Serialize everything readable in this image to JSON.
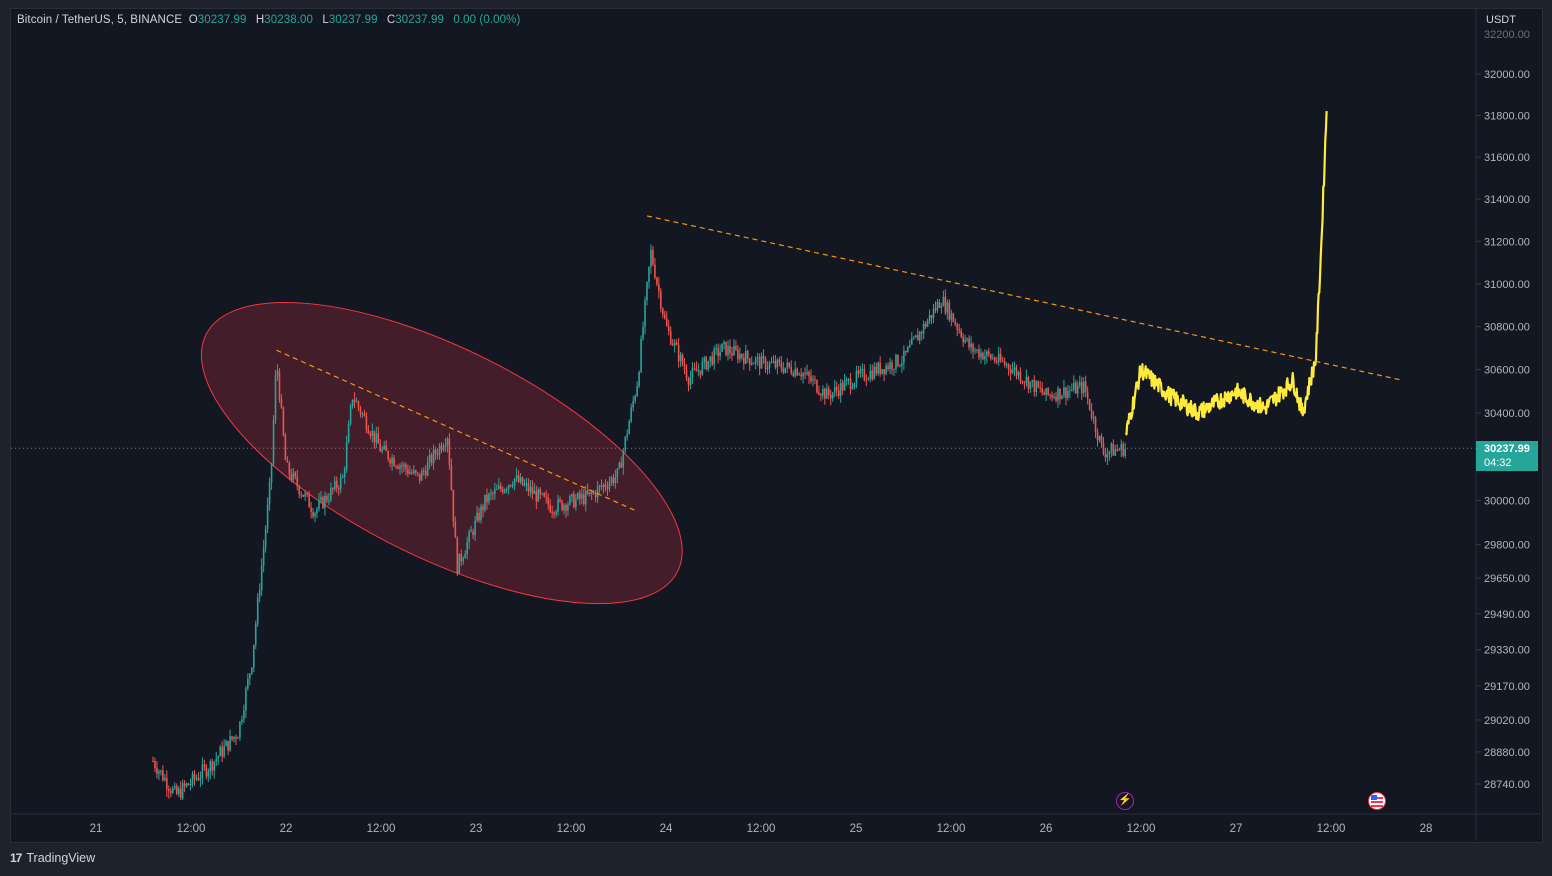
{
  "legend": {
    "symbol": "Bitcoin / TetherUS, 5, BINANCE",
    "o_label": "O",
    "o_value": "30237.99",
    "h_label": "H",
    "h_value": "30238.00",
    "l_label": "L",
    "l_value": "30237.99",
    "c_label": "C",
    "c_value": "30237.99",
    "change": "0.00 (0.00%)"
  },
  "axis_unit": "USDT",
  "price_tag": {
    "price": "30237.99",
    "countdown": "04:32"
  },
  "branding": "TradingView",
  "colors": {
    "background": "#131722",
    "up": "#26a69a",
    "down": "#ef5350",
    "projection": "#ffeb3b",
    "trendline": "#f7931a",
    "ellipse": "#f23645"
  },
  "icons": [
    "lightning-event-icon",
    "us-flag-event-icon",
    "tradingview-logo-icon"
  ],
  "chart_data": {
    "type": "candlestick",
    "title": "Bitcoin / TetherUS, 5, BINANCE",
    "y_axis": {
      "unit": "USDT",
      "ticks": [
        32000,
        31800,
        31600,
        31400,
        31200,
        31000,
        30800,
        30600,
        30400,
        30000,
        29800,
        29650,
        29490,
        29330,
        29170,
        29020,
        28880,
        28740
      ],
      "tick_labels": [
        "32000.00",
        "31800.00",
        "31600.00",
        "31400.00",
        "31200.00",
        "31000.00",
        "30800.00",
        "30600.00",
        "30400.00",
        "30000.00",
        "29800.00",
        "29650.00",
        "29490.00",
        "29330.00",
        "29170.00",
        "29020.00",
        "28880.00",
        "28740.00"
      ],
      "scale": "log"
    },
    "x_axis": {
      "tick_labels": [
        "21",
        "12:00",
        "22",
        "12:00",
        "23",
        "12:00",
        "24",
        "12:00",
        "25",
        "12:00",
        "26",
        "12:00",
        "27",
        "12:00",
        "28"
      ]
    },
    "current_price": 30237.99,
    "approx_path": [
      {
        "t": 21.3,
        "p": 28840
      },
      {
        "t": 21.42,
        "p": 28690
      },
      {
        "t": 21.6,
        "p": 28820
      },
      {
        "t": 21.75,
        "p": 28970
      },
      {
        "t": 21.82,
        "p": 29280
      },
      {
        "t": 21.92,
        "p": 30100
      },
      {
        "t": 21.95,
        "p": 30650
      },
      {
        "t": 22.0,
        "p": 30150
      },
      {
        "t": 22.15,
        "p": 29950
      },
      {
        "t": 22.3,
        "p": 30100
      },
      {
        "t": 22.35,
        "p": 30480
      },
      {
        "t": 22.5,
        "p": 30230
      },
      {
        "t": 22.7,
        "p": 30100
      },
      {
        "t": 22.85,
        "p": 30300
      },
      {
        "t": 22.9,
        "p": 29700
      },
      {
        "t": 23.05,
        "p": 30000
      },
      {
        "t": 23.2,
        "p": 30100
      },
      {
        "t": 23.4,
        "p": 29970
      },
      {
        "t": 23.6,
        "p": 30020
      },
      {
        "t": 23.75,
        "p": 30120
      },
      {
        "t": 23.85,
        "p": 30550
      },
      {
        "t": 23.92,
        "p": 31150
      },
      {
        "t": 24.0,
        "p": 30800
      },
      {
        "t": 24.12,
        "p": 30560
      },
      {
        "t": 24.3,
        "p": 30700
      },
      {
        "t": 24.5,
        "p": 30630
      },
      {
        "t": 24.7,
        "p": 30600
      },
      {
        "t": 24.85,
        "p": 30480
      },
      {
        "t": 25.0,
        "p": 30560
      },
      {
        "t": 25.25,
        "p": 30650
      },
      {
        "t": 25.45,
        "p": 30930
      },
      {
        "t": 25.6,
        "p": 30700
      },
      {
        "t": 25.8,
        "p": 30620
      },
      {
        "t": 26.0,
        "p": 30480
      },
      {
        "t": 26.2,
        "p": 30520
      },
      {
        "t": 26.3,
        "p": 30220
      },
      {
        "t": 26.42,
        "p": 30238
      }
    ],
    "projection_path": [
      {
        "t": 26.42,
        "p": 30300
      },
      {
        "t": 26.5,
        "p": 30600
      },
      {
        "t": 26.65,
        "p": 30480
      },
      {
        "t": 26.8,
        "p": 30400
      },
      {
        "t": 27.0,
        "p": 30500
      },
      {
        "t": 27.15,
        "p": 30420
      },
      {
        "t": 27.3,
        "p": 30550
      },
      {
        "t": 27.35,
        "p": 30400
      },
      {
        "t": 27.42,
        "p": 30650
      },
      {
        "t": 27.45,
        "p": 31200
      },
      {
        "t": 27.48,
        "p": 31900
      }
    ],
    "annotations": [
      {
        "type": "trendline",
        "style": "dashed",
        "from": {
          "t": 21.95,
          "p": 30690
        },
        "to": {
          "t": 23.85,
          "p": 29950
        }
      },
      {
        "type": "trendline",
        "style": "dashed",
        "from": {
          "t": 23.9,
          "p": 31320
        },
        "to": {
          "t": 27.88,
          "p": 30550
        }
      },
      {
        "type": "ellipse",
        "around": "22-23 downtrend channel"
      }
    ]
  }
}
